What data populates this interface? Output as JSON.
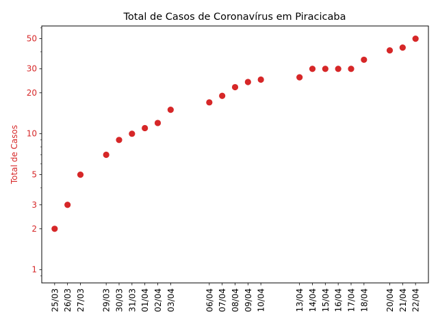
{
  "chart_data": {
    "type": "scatter",
    "title": "Total de Casos de Coronavírus em Piracicaba",
    "xlabel": "",
    "ylabel": "Total de Casos",
    "yscale": "log",
    "ylim": [
      0.8,
      62
    ],
    "yticks": [
      1,
      2,
      3,
      5,
      10,
      20,
      30,
      50
    ],
    "xlim": [
      -1,
      29
    ],
    "grid": false,
    "colors": {
      "points": "#d62728",
      "ylabel": "#d62728",
      "yticklabels": "#d62728",
      "axes": "#000000"
    },
    "series": [
      {
        "name": "Total de Casos",
        "points": [
          {
            "x": 0,
            "label": "25/03",
            "value": 2
          },
          {
            "x": 1,
            "label": "26/03",
            "value": 3
          },
          {
            "x": 2,
            "label": "27/03",
            "value": 5
          },
          {
            "x": 4,
            "label": "29/03",
            "value": 7
          },
          {
            "x": 5,
            "label": "30/03",
            "value": 9
          },
          {
            "x": 6,
            "label": "31/03",
            "value": 10
          },
          {
            "x": 7,
            "label": "01/04",
            "value": 11
          },
          {
            "x": 8,
            "label": "02/04",
            "value": 12
          },
          {
            "x": 9,
            "label": "03/04",
            "value": 15
          },
          {
            "x": 12,
            "label": "06/04",
            "value": 17
          },
          {
            "x": 13,
            "label": "07/04",
            "value": 19
          },
          {
            "x": 14,
            "label": "08/04",
            "value": 22
          },
          {
            "x": 15,
            "label": "09/04",
            "value": 24
          },
          {
            "x": 16,
            "label": "10/04",
            "value": 25
          },
          {
            "x": 19,
            "label": "13/04",
            "value": 26
          },
          {
            "x": 20,
            "label": "14/04",
            "value": 30
          },
          {
            "x": 21,
            "label": "15/04",
            "value": 30
          },
          {
            "x": 22,
            "label": "16/04",
            "value": 30
          },
          {
            "x": 23,
            "label": "17/04",
            "value": 30
          },
          {
            "x": 24,
            "label": "18/04",
            "value": 35
          },
          {
            "x": 26,
            "label": "20/04",
            "value": 41
          },
          {
            "x": 27,
            "label": "21/04",
            "value": 43
          },
          {
            "x": 28,
            "label": "22/04",
            "value": 50
          }
        ]
      }
    ]
  }
}
